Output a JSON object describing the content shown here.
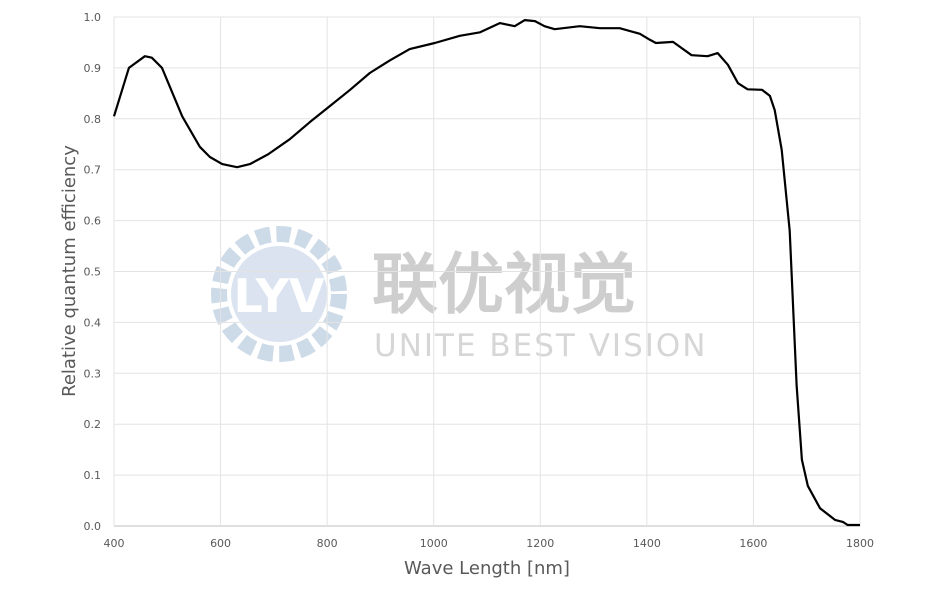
{
  "chart_data": {
    "type": "line",
    "title": "",
    "xlabel": "Wave Length [nm]",
    "ylabel": "Relative quantum efficiency",
    "xlim": [
      400,
      1800
    ],
    "ylim": [
      0.0,
      1.0
    ],
    "x_ticks": [
      400,
      600,
      800,
      1000,
      1200,
      1400,
      1600,
      1800
    ],
    "y_ticks": [
      "0.0",
      "0.1",
      "0.2",
      "0.3",
      "0.4",
      "0.5",
      "0.6",
      "0.7",
      "0.8",
      "0.9",
      "1.0"
    ],
    "grid": true,
    "legend": "none",
    "line_color": "#000000",
    "series": [
      {
        "x": [
          400,
          428,
          458,
          471,
          490,
          528,
          561,
          580,
          603,
          631,
          655,
          689,
          730,
          768,
          805,
          843,
          880,
          918,
          955,
          1002,
          1049,
          1087,
          1124,
          1152,
          1171,
          1190,
          1208,
          1227,
          1274,
          1312,
          1349,
          1387,
          1406,
          1417,
          1449,
          1484,
          1514,
          1533,
          1552,
          1571,
          1589,
          1616,
          1631,
          1640,
          1653,
          1668,
          1681,
          1691,
          1702,
          1725,
          1753,
          1768,
          1777,
          1800
        ],
        "y": [
          0.805,
          0.9,
          0.923,
          0.92,
          0.9,
          0.805,
          0.745,
          0.725,
          0.711,
          0.705,
          0.711,
          0.73,
          0.76,
          0.794,
          0.825,
          0.857,
          0.89,
          0.915,
          0.937,
          0.949,
          0.963,
          0.97,
          0.988,
          0.982,
          0.994,
          0.992,
          0.982,
          0.976,
          0.982,
          0.978,
          0.978,
          0.967,
          0.955,
          0.949,
          0.951,
          0.925,
          0.923,
          0.929,
          0.906,
          0.87,
          0.858,
          0.857,
          0.845,
          0.817,
          0.739,
          0.58,
          0.277,
          0.13,
          0.079,
          0.035,
          0.012,
          0.008,
          0.002,
          0.002
        ]
      }
    ]
  },
  "watermark": {
    "logo_text": "LYV",
    "chinese": "联优视觉",
    "english": "UNITE BEST VISION"
  }
}
